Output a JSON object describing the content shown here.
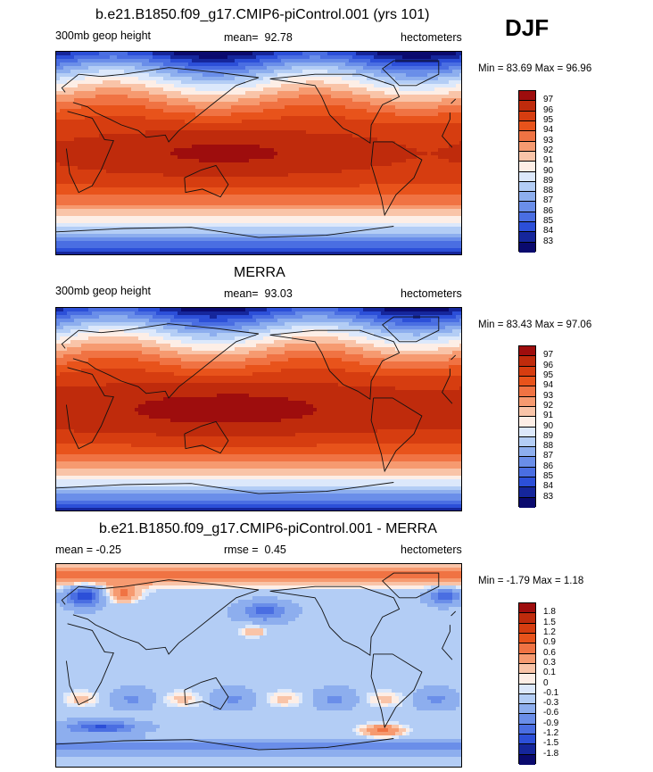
{
  "season": "DJF",
  "units": "hectometers",
  "panels": [
    {
      "id": "model",
      "title": "b.e21.B1850.f09_g17.CMIP6-piControl.001 (yrs 101)",
      "left_label": "300mb geop height",
      "mean_label": "mean=",
      "mean_value": "92.78",
      "minmax": "Min =  83.69 Max =  96.96",
      "field": "abs"
    },
    {
      "id": "obs",
      "title": "MERRA",
      "left_label": "300mb geop height",
      "mean_label": "mean=",
      "mean_value": "93.03",
      "minmax": "Min =  83.43 Max =  97.06",
      "field": "abs"
    },
    {
      "id": "diff",
      "title": "b.e21.B1850.f09_g17.CMIP6-piControl.001 - MERRA",
      "left_label": "mean =  -0.25",
      "mean_label": "rmse =",
      "mean_value": "0.45",
      "minmax": "Min =  -1.79 Max =   1.18",
      "field": "diff"
    }
  ],
  "chart_data": {
    "type": "heatmap",
    "colorbar_abs": {
      "levels": [
        "97",
        "96",
        "95",
        "94",
        "93",
        "92",
        "91",
        "90",
        "89",
        "88",
        "87",
        "86",
        "85",
        "84",
        "83"
      ],
      "colors": [
        "#9e0d0d",
        "#bf2b0c",
        "#d63d10",
        "#e8531b",
        "#f07343",
        "#f69a70",
        "#f9c4a8",
        "#fdeee6",
        "#dce8fb",
        "#b3cdf5",
        "#8daeee",
        "#6a8ee9",
        "#4a6ee2",
        "#2c4fd8",
        "#15269b",
        "#0a0a6e"
      ]
    },
    "colorbar_diff": {
      "levels": [
        "1.8",
        "1.5",
        "1.2",
        "0.9",
        "0.6",
        "0.3",
        "0.1",
        "0",
        "-0.1",
        "-0.3",
        "-0.6",
        "-0.9",
        "-1.2",
        "-1.5",
        "-1.8"
      ],
      "colors": [
        "#9e0d0d",
        "#bf2b0c",
        "#d63d10",
        "#e8531b",
        "#f07343",
        "#f69a70",
        "#f9c4a8",
        "#fdeee6",
        "#dce8fb",
        "#b3cdf5",
        "#8daeee",
        "#6a8ee9",
        "#4a6ee2",
        "#2c4fd8",
        "#15269b",
        "#0a0a6e"
      ]
    },
    "x_range_deg": [
      0,
      360
    ],
    "y_range_deg": [
      -90,
      90
    ]
  }
}
